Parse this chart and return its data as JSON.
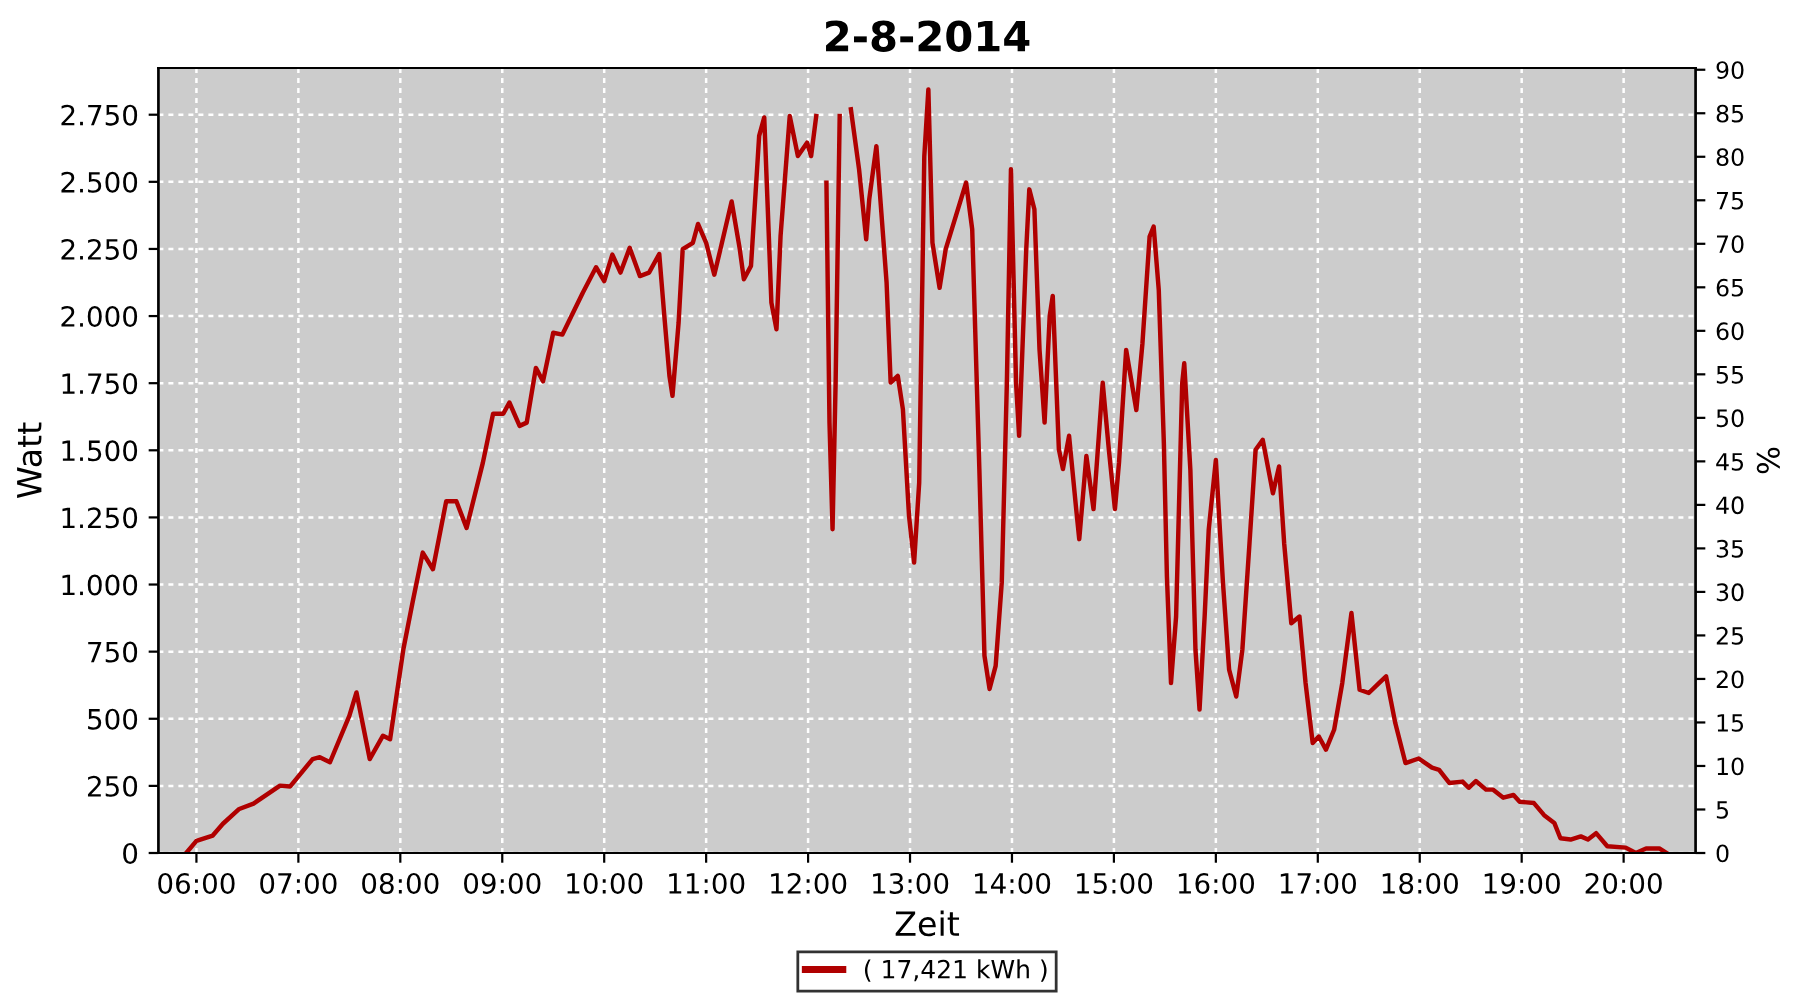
{
  "chart_data": {
    "type": "line",
    "title": "2-8-2014",
    "xlabel": "Zeit",
    "ylabel": "Watt",
    "y2label": "%",
    "xlim": [
      5.627,
      20.706
    ],
    "xticks": [
      {
        "value": 6,
        "label": "06:00"
      },
      {
        "value": 7,
        "label": "07:00"
      },
      {
        "value": 8,
        "label": "08:00"
      },
      {
        "value": 9,
        "label": "09:00"
      },
      {
        "value": 10,
        "label": "10:00"
      },
      {
        "value": 11,
        "label": "11:00"
      },
      {
        "value": 12,
        "label": "12:00"
      },
      {
        "value": 13,
        "label": "13:00"
      },
      {
        "value": 14,
        "label": "14:00"
      },
      {
        "value": 15,
        "label": "15:00"
      },
      {
        "value": 16,
        "label": "16:00"
      },
      {
        "value": 17,
        "label": "17:00"
      },
      {
        "value": 18,
        "label": "18:00"
      },
      {
        "value": 19,
        "label": "19:00"
      },
      {
        "value": 20,
        "label": "20:00"
      }
    ],
    "ylim": [
      0,
      2924
    ],
    "yticks": [
      0,
      250,
      500,
      750,
      {
        "value": 1000,
        "label": "1.000"
      },
      {
        "value": 1250,
        "label": "1.250"
      },
      {
        "value": 1500,
        "label": "1.500"
      },
      {
        "value": 1750,
        "label": "1.750"
      },
      {
        "value": 2000,
        "label": "2.000"
      },
      {
        "value": 2250,
        "label": "2.250"
      },
      {
        "value": 2500,
        "label": "2.500"
      },
      {
        "value": 2750,
        "label": "2.750"
      }
    ],
    "y2lim": [
      0,
      90.2
    ],
    "y2ticks": [
      0,
      5,
      10,
      15,
      20,
      25,
      30,
      35,
      40,
      45,
      50,
      55,
      60,
      65,
      70,
      75,
      80,
      85,
      90
    ],
    "grid": true,
    "legend": "bottom",
    "marker": "none",
    "line_style": "solid",
    "series": [
      {
        "name": "( 17,421 kWh )",
        "color": "#b00000",
        "x": [
          5.9,
          6.0,
          6.16,
          6.26,
          6.42,
          6.56,
          6.82,
          6.92,
          7.14,
          7.21,
          7.31,
          7.5,
          7.57,
          7.7,
          7.83,
          7.9,
          8.03,
          8.12,
          8.22,
          8.32,
          8.45,
          8.55,
          8.65,
          8.81,
          8.91,
          9.01,
          9.07,
          9.17,
          9.24,
          9.33,
          9.4,
          9.5,
          9.59,
          9.79,
          9.92,
          10.0,
          10.08,
          10.16,
          10.25,
          10.35,
          10.44,
          10.54,
          10.59,
          10.64,
          10.67,
          10.73,
          10.77,
          10.87,
          10.92,
          11.0,
          11.08,
          11.14,
          11.25,
          11.33,
          11.37,
          11.44,
          11.52,
          11.57,
          11.64,
          11.69,
          11.73,
          11.82,
          11.9,
          11.99,
          12.03,
          12.08,
          12.13,
          12.18,
          12.21,
          12.24,
          12.27,
          12.31,
          12.35,
          12.42,
          12.5,
          12.57,
          12.6,
          12.67,
          12.77,
          12.81,
          12.88,
          12.93,
          12.99,
          13.04,
          13.09,
          13.14,
          13.18,
          13.22,
          13.29,
          13.35,
          13.45,
          13.55,
          13.61,
          13.68,
          13.73,
          13.78,
          13.84,
          13.9,
          13.95,
          13.99,
          14.04,
          14.07,
          14.14,
          14.17,
          14.22,
          14.27,
          14.32,
          14.37,
          14.4,
          14.46,
          14.5,
          14.56,
          14.63,
          14.66,
          14.73,
          14.8,
          14.89,
          14.95,
          15.01,
          15.05,
          15.12,
          15.22,
          15.28,
          15.35,
          15.39,
          15.44,
          15.49,
          15.52,
          15.56,
          15.61,
          15.67,
          15.69,
          15.75,
          15.8,
          15.84,
          15.89,
          15.93,
          16.0,
          16.07,
          16.13,
          16.2,
          16.26,
          16.33,
          16.39,
          16.46,
          16.56,
          16.62,
          16.67,
          16.74,
          16.82,
          16.88,
          16.95,
          17.01,
          17.08,
          17.16,
          17.24,
          17.33,
          17.41,
          17.5,
          17.6,
          17.67,
          17.76,
          17.86,
          17.99,
          18.12,
          18.19,
          18.29,
          18.42,
          18.48,
          18.55,
          18.65,
          18.72,
          18.82,
          18.92,
          18.98,
          19.12,
          19.22,
          19.32,
          19.38,
          19.48,
          19.58,
          19.65,
          19.73,
          19.84,
          20.02,
          20.12,
          20.22,
          20.35,
          20.42
        ],
        "values": [
          0,
          45,
          65,
          109,
          164,
          184,
          251,
          248,
          350,
          357,
          338,
          511,
          598,
          350,
          437,
          424,
          759,
          933,
          1119,
          1057,
          1310,
          1310,
          1211,
          1454,
          1636,
          1636,
          1678,
          1591,
          1603,
          1807,
          1757,
          1938,
          1931,
          2087,
          2182,
          2130,
          2229,
          2162,
          2254,
          2149,
          2162,
          2231,
          2000,
          1777,
          1703,
          1976,
          2249,
          2273,
          2343,
          2273,
          2154,
          2249,
          2427,
          2249,
          2137,
          2187,
          2671,
          2740,
          2050,
          1951,
          2298,
          2745,
          2596,
          2646,
          2596,
          2745,
          null,
          2497,
          1603,
          1206,
          1752,
          2745,
          null,
          2770,
          2547,
          2286,
          2435,
          2633,
          2125,
          1752,
          1777,
          1653,
          1256,
          1082,
          1380,
          2596,
          2844,
          2273,
          2105,
          2249,
          2373,
          2497,
          2323,
          1430,
          735,
          611,
          697,
          1008,
          1752,
          2547,
          1752,
          1554,
          2249,
          2472,
          2398,
          1876,
          1603,
          2000,
          2075,
          1504,
          1430,
          1554,
          1281,
          1169,
          1479,
          1281,
          1752,
          1504,
          1281,
          1454,
          1874,
          1650,
          1899,
          2296,
          2333,
          2097,
          1526,
          1030,
          633,
          881,
          1750,
          1824,
          1427,
          757,
          534,
          881,
          1204,
          1464,
          1005,
          683,
          583,
          757,
          1154,
          1502,
          1539,
          1340,
          1440,
          1154,
          856,
          881,
          633,
          410,
          434,
          385,
          459,
          633,
          894,
          608,
          596,
          633,
          658,
          484,
          335,
          352,
          318,
          310,
          261,
          266,
          243,
          268,
          236,
          236,
          206,
          216,
          191,
          186,
          141,
          112,
          55,
          50,
          62,
          50,
          74,
          25,
          20,
          0,
          17,
          17,
          0
        ]
      }
    ]
  }
}
